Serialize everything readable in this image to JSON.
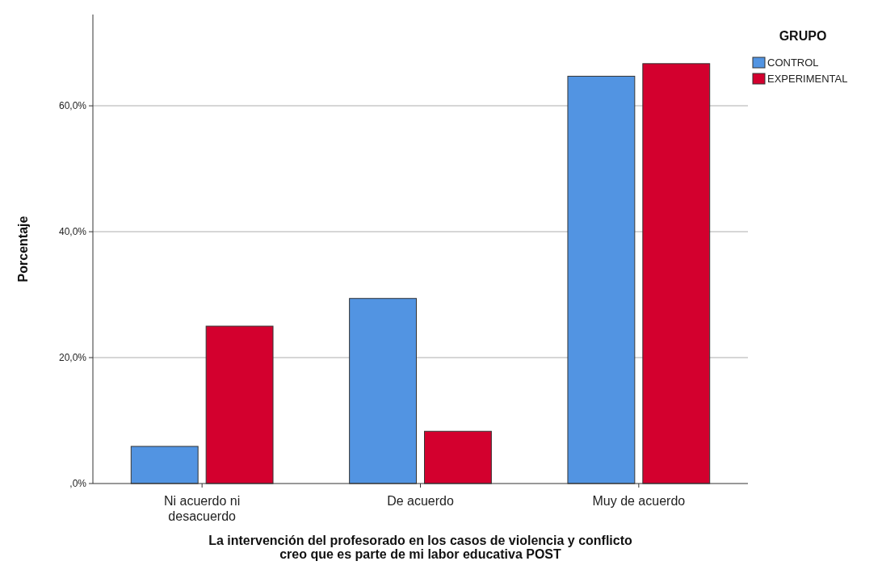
{
  "chart_data": {
    "type": "bar",
    "xlabel": "La intervención del profesorado en los casos de violencia y conflicto\ncreo que es parte de mi labor educativa POST",
    "ylabel": "Porcentaje",
    "legend_title": "GRUPO",
    "categories": [
      "Ni acuerdo ni\ndesacuerdo",
      "De acuerdo",
      "Muy de acuerdo"
    ],
    "series": [
      {
        "name": "CONTROL",
        "color": "#5294e2",
        "values": [
          5.9,
          29.4,
          64.7
        ]
      },
      {
        "name": "EXPERIMENTAL",
        "color": "#d3002e",
        "values": [
          25.0,
          8.3,
          66.7
        ]
      }
    ],
    "ylim": [
      0,
      74.5
    ],
    "yticks": [
      {
        "value": 0,
        "label": ",0%"
      },
      {
        "value": 20,
        "label": "20,0%"
      },
      {
        "value": 40,
        "label": "40,0%"
      },
      {
        "value": 60,
        "label": "60,0%"
      }
    ],
    "grid": "y",
    "legend": "top right"
  }
}
